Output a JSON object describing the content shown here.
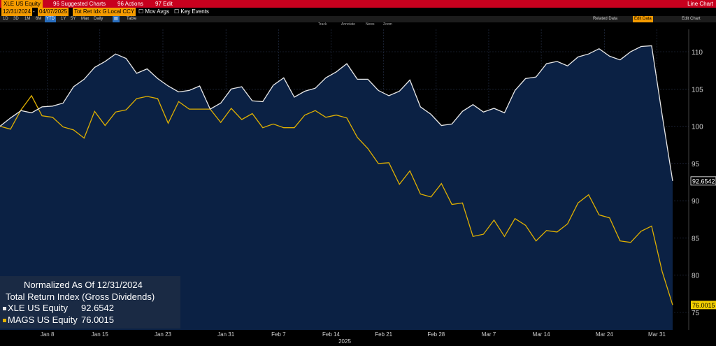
{
  "toolbar": {
    "ticker": "XLE US Equity",
    "suggested": "96 Suggested Charts",
    "actions": "96 Actions",
    "edit": "97 Edit",
    "chart_type": "Line Chart"
  },
  "controls": {
    "start_date": "12/31/2024",
    "end_date": "04/07/2025",
    "field": "Tot Ret Idx G",
    "currency": "Local CCY",
    "mov_avgs": "Mov Avgs",
    "key_events": "Key Events",
    "related_data": "Related Data",
    "edit_data": "Edit Data",
    "edit_chart": "Edit Chart"
  },
  "ranges": {
    "items": [
      "1D",
      "3D",
      "1M",
      "6M",
      "YTD",
      "1Y",
      "5Y",
      "Max",
      "Daily"
    ],
    "selected": "YTD",
    "table": "Table"
  },
  "tools": {
    "track": "Track",
    "annotate": "Annotate",
    "news": "News",
    "zoom": "Zoom"
  },
  "colors": {
    "xle": "#e8e8e8",
    "mags": "#e0b000",
    "fill": "#0b2144",
    "toolbar": "#c8001e",
    "accent": "#f59b00"
  },
  "chart_data": {
    "type": "line",
    "title": "Normalized As Of 12/31/2024",
    "subtitle": "Total Return Index (Gross Dividends)",
    "year_label": "2025",
    "x_ticks": [
      "Jan 8",
      "Jan 15",
      "Jan 23",
      "Jan 31",
      "Feb 7",
      "Feb 14",
      "Feb 21",
      "Feb 28",
      "Mar 7",
      "Mar 14",
      "Mar 24",
      "Mar 31"
    ],
    "ylim": [
      74,
      114
    ],
    "y_ticks": [
      75,
      80,
      85,
      90,
      95,
      100,
      105,
      110
    ],
    "series": [
      {
        "name": "XLE US Equity",
        "last_value": "92.6542",
        "values": [
          100.0,
          101.1,
          102.1,
          101.8,
          102.6,
          102.7,
          103.1,
          105.3,
          106.3,
          107.9,
          108.7,
          109.7,
          109.1,
          107.1,
          107.7,
          106.4,
          105.4,
          104.6,
          104.8,
          105.4,
          102.3,
          103.1,
          105.0,
          105.3,
          103.4,
          103.3,
          105.5,
          106.5,
          103.9,
          104.7,
          105.1,
          106.5,
          107.3,
          108.4,
          106.3,
          106.3,
          104.8,
          104.1,
          104.7,
          106.2,
          102.6,
          101.6,
          100.1,
          100.3,
          102.0,
          102.9,
          101.9,
          102.4,
          101.8,
          104.8,
          106.4,
          106.6,
          108.4,
          108.7,
          108.1,
          109.3,
          109.7,
          110.4,
          109.4,
          108.9,
          110.0,
          110.7,
          110.8,
          101.5,
          92.6542
        ]
      },
      {
        "name": "MAGS US Equity",
        "last_value": "76.0015",
        "values": [
          100.0,
          99.6,
          102.2,
          104.1,
          101.4,
          101.2,
          99.9,
          99.5,
          98.4,
          102.0,
          100.1,
          101.9,
          102.2,
          103.7,
          104.0,
          103.7,
          100.4,
          103.3,
          102.3,
          102.3,
          102.3,
          100.5,
          102.4,
          100.9,
          101.7,
          99.8,
          100.3,
          99.8,
          99.8,
          101.5,
          102.1,
          101.2,
          101.5,
          101.1,
          98.5,
          97.0,
          95.0,
          95.1,
          92.2,
          94.0,
          90.9,
          90.5,
          92.3,
          89.5,
          89.7,
          85.2,
          85.5,
          87.4,
          85.2,
          87.6,
          86.7,
          84.6,
          86.0,
          85.8,
          86.9,
          89.7,
          90.8,
          88.1,
          87.7,
          84.6,
          84.4,
          85.9,
          86.6,
          80.5,
          76.0015
        ]
      }
    ]
  }
}
